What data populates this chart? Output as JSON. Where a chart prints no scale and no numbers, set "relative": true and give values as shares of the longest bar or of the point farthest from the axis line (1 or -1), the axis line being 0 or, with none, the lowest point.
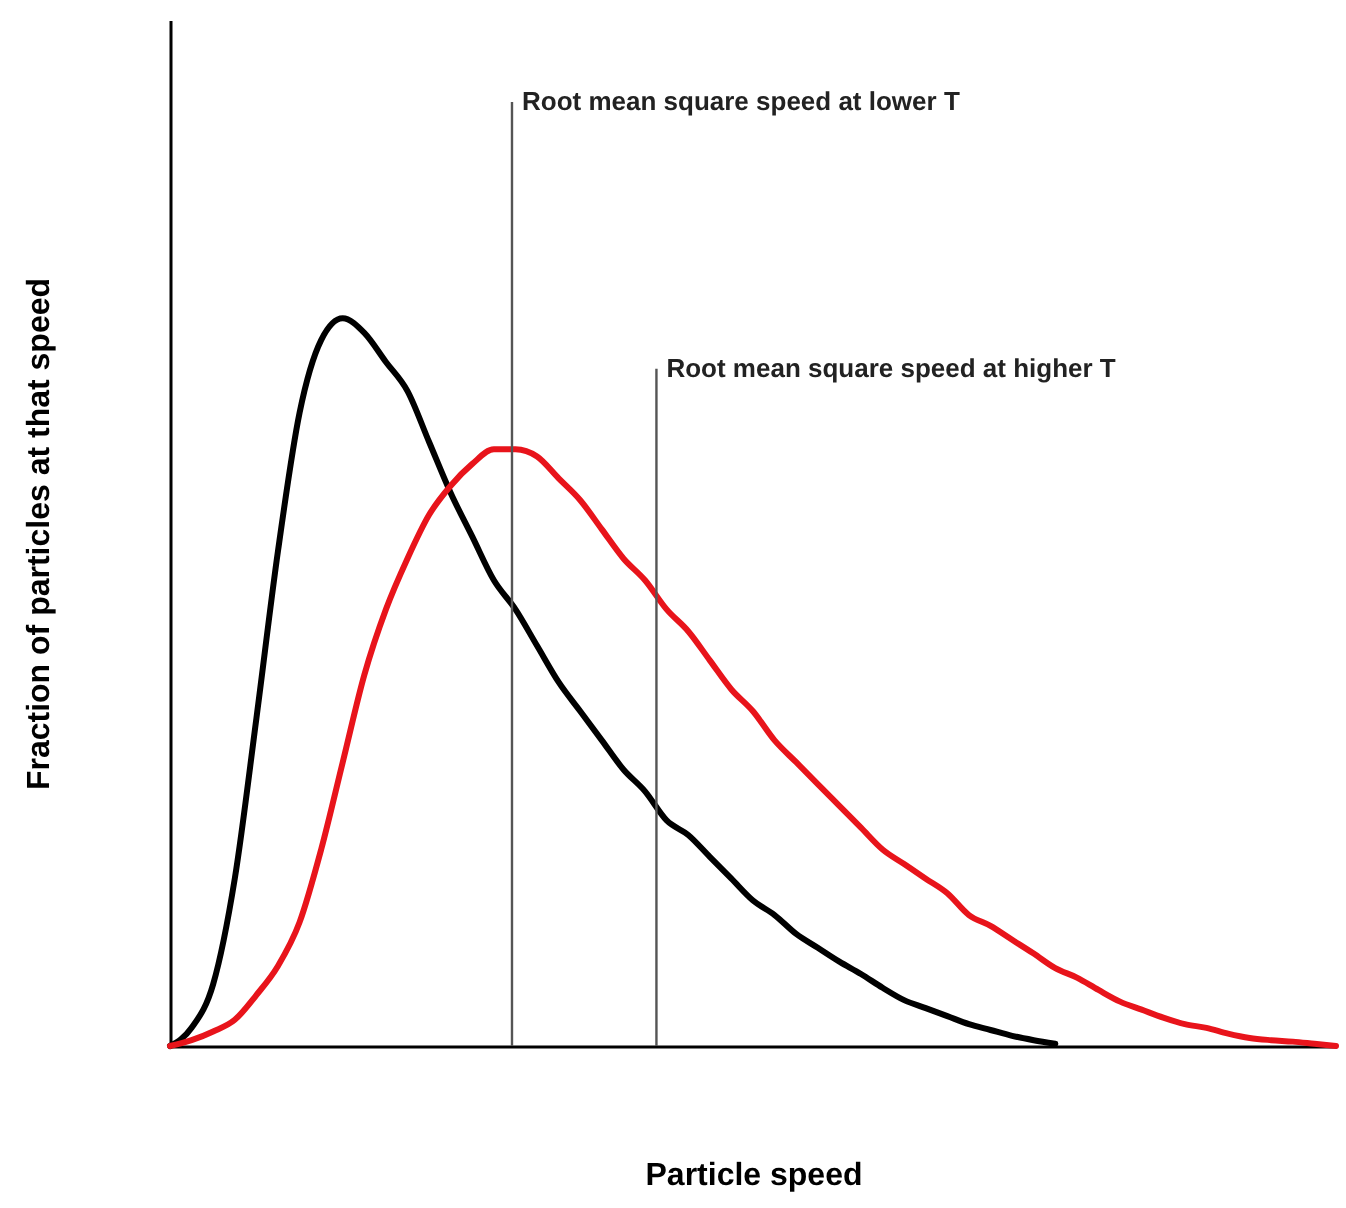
{
  "chart_data": {
    "type": "line",
    "relative": true,
    "xlabel": "Particle speed",
    "ylabel": "Fraction of particles at that speed",
    "marker": "none",
    "line_style": "solid",
    "annotations": [
      "Root mean square speed at lower T",
      "Root mean square speed at higher T"
    ],
    "categories": [
      null,
      null,
      null,
      null,
      null,
      null,
      null,
      null,
      null,
      null,
      null,
      null,
      null,
      null,
      null,
      null,
      null,
      null,
      null,
      null,
      null,
      null,
      null,
      null,
      null,
      null,
      null,
      null,
      null,
      null,
      null,
      null,
      null,
      null,
      null,
      null,
      null,
      null,
      null,
      null,
      null,
      null,
      null,
      null,
      null,
      null,
      null,
      null,
      null,
      null,
      null,
      null,
      null,
      null,
      null
    ],
    "series": [
      {
        "color": "#000000",
        "values": [
          0,
          0.025,
          0.085,
          0.23,
          0.45,
          0.68,
          0.87,
          0.97,
          1,
          0.98,
          0.94,
          0.9,
          0.83,
          0.76,
          0.7,
          0.64,
          0.6,
          0.55,
          0.5,
          0.46,
          0.42,
          0.38,
          0.35,
          0.31,
          0.29,
          0.26,
          0.23,
          0.2,
          0.18,
          0.154,
          0.135,
          0.116,
          0.099,
          0.08,
          0.063,
          0.052,
          0.041,
          0.03,
          0.022,
          0.014,
          0.008,
          0.003,
          null,
          null,
          null,
          null,
          null,
          null,
          null,
          null,
          null,
          null,
          null,
          null,
          null
        ]
      },
      {
        "color": "#e8141b",
        "values": [
          0,
          0.008,
          0.02,
          0.036,
          0.07,
          0.11,
          0.17,
          0.27,
          0.39,
          0.51,
          0.6,
          0.67,
          0.73,
          0.77,
          0.8,
          0.82,
          0.82,
          0.81,
          0.78,
          0.75,
          0.71,
          0.67,
          0.64,
          0.6,
          0.57,
          0.53,
          0.49,
          0.46,
          0.42,
          0.39,
          0.36,
          0.33,
          0.3,
          0.27,
          0.25,
          0.23,
          0.21,
          0.18,
          0.165,
          0.146,
          0.127,
          0.107,
          0.094,
          0.077,
          0.061,
          0.05,
          0.039,
          0.03,
          0.025,
          0.017,
          0.011,
          0.008,
          0.006,
          0.003,
          0
        ]
      }
    ]
  }
}
